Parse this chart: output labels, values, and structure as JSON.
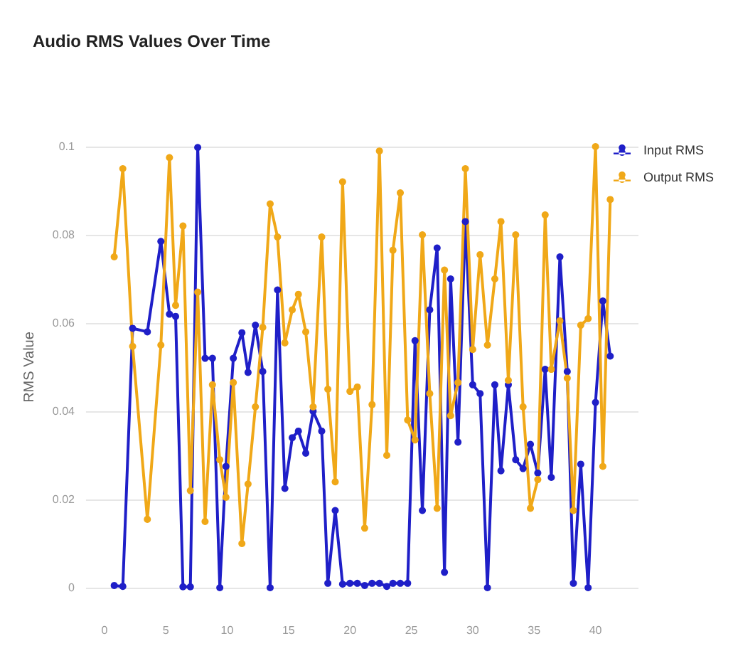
{
  "chart_data": {
    "type": "line",
    "title": "Audio RMS Values Over Time",
    "ylabel": "RMS Value",
    "x": [
      0.8,
      1.5,
      2.3,
      3.5,
      4.6,
      5.3,
      5.8,
      6.4,
      7.0,
      7.6,
      8.2,
      8.8,
      9.4,
      9.9,
      10.5,
      11.2,
      11.7,
      12.3,
      12.9,
      13.5,
      14.1,
      14.7,
      15.3,
      15.8,
      16.4,
      17.0,
      17.7,
      18.2,
      18.8,
      19.4,
      20.0,
      20.6,
      21.2,
      21.8,
      22.4,
      23.0,
      23.5,
      24.1,
      24.7,
      25.3,
      25.9,
      26.5,
      27.1,
      27.7,
      28.2,
      28.8,
      29.4,
      30.0,
      30.6,
      31.2,
      31.8,
      32.3,
      32.9,
      33.5,
      34.1,
      34.7,
      35.3,
      35.9,
      36.4,
      37.1,
      37.7,
      38.2,
      38.8,
      39.4,
      40.0,
      40.6,
      41.2
    ],
    "series": [
      {
        "name": "Input RMS",
        "color": "#1f1fc8",
        "values": [
          0.0005,
          0.0003,
          0.0588,
          0.058,
          0.0785,
          0.062,
          0.0615,
          0.0002,
          0.0002,
          0.0998,
          0.052,
          0.052,
          0.0,
          0.0275,
          0.052,
          0.0578,
          0.0488,
          0.0595,
          0.049,
          0.0,
          0.0675,
          0.0225,
          0.034,
          0.0355,
          0.0305,
          0.04,
          0.0355,
          0.001,
          0.0175,
          0.0008,
          0.001,
          0.001,
          0.0005,
          0.001,
          0.001,
          0.0003,
          0.001,
          0.001,
          0.001,
          0.056,
          0.0175,
          0.063,
          0.077,
          0.0035,
          0.07,
          0.033,
          0.083,
          0.046,
          0.044,
          0.0,
          0.046,
          0.0265,
          0.046,
          0.029,
          0.027,
          0.0325,
          0.026,
          0.0495,
          0.025,
          0.075,
          0.049,
          0.001,
          0.028,
          0.0,
          0.042,
          0.065,
          0.0525
        ]
      },
      {
        "name": "Output RMS",
        "color": "#f0a818",
        "values": [
          0.075,
          0.095,
          0.0547,
          0.0155,
          0.055,
          0.0975,
          0.064,
          0.082,
          0.022,
          0.067,
          0.015,
          0.046,
          0.029,
          0.0205,
          0.0465,
          0.01,
          0.0235,
          0.041,
          0.059,
          0.087,
          0.0795,
          0.0555,
          0.063,
          0.0665,
          0.058,
          0.041,
          0.0795,
          0.045,
          0.024,
          0.092,
          0.0445,
          0.0455,
          0.0135,
          0.0415,
          0.099,
          0.03,
          0.0765,
          0.0895,
          0.038,
          0.0335,
          0.08,
          0.044,
          0.018,
          0.072,
          0.039,
          0.0465,
          0.095,
          0.054,
          0.0755,
          0.055,
          0.07,
          0.083,
          0.047,
          0.08,
          0.041,
          0.018,
          0.0245,
          0.0845,
          0.0495,
          0.0605,
          0.0475,
          0.0175,
          0.0595,
          0.061,
          0.1,
          0.0275,
          0.088
        ]
      }
    ],
    "xlim": [
      -1.5,
      43.5
    ],
    "xticks": [
      0,
      5,
      10,
      15,
      20,
      25,
      30,
      35,
      40
    ],
    "ylim": [
      0,
      0.1
    ],
    "yticks": [
      0,
      0.02,
      0.04,
      0.06,
      0.08,
      0.1
    ],
    "grid": "y",
    "legend": "top right",
    "marker": "circle",
    "line_style": "solid"
  }
}
